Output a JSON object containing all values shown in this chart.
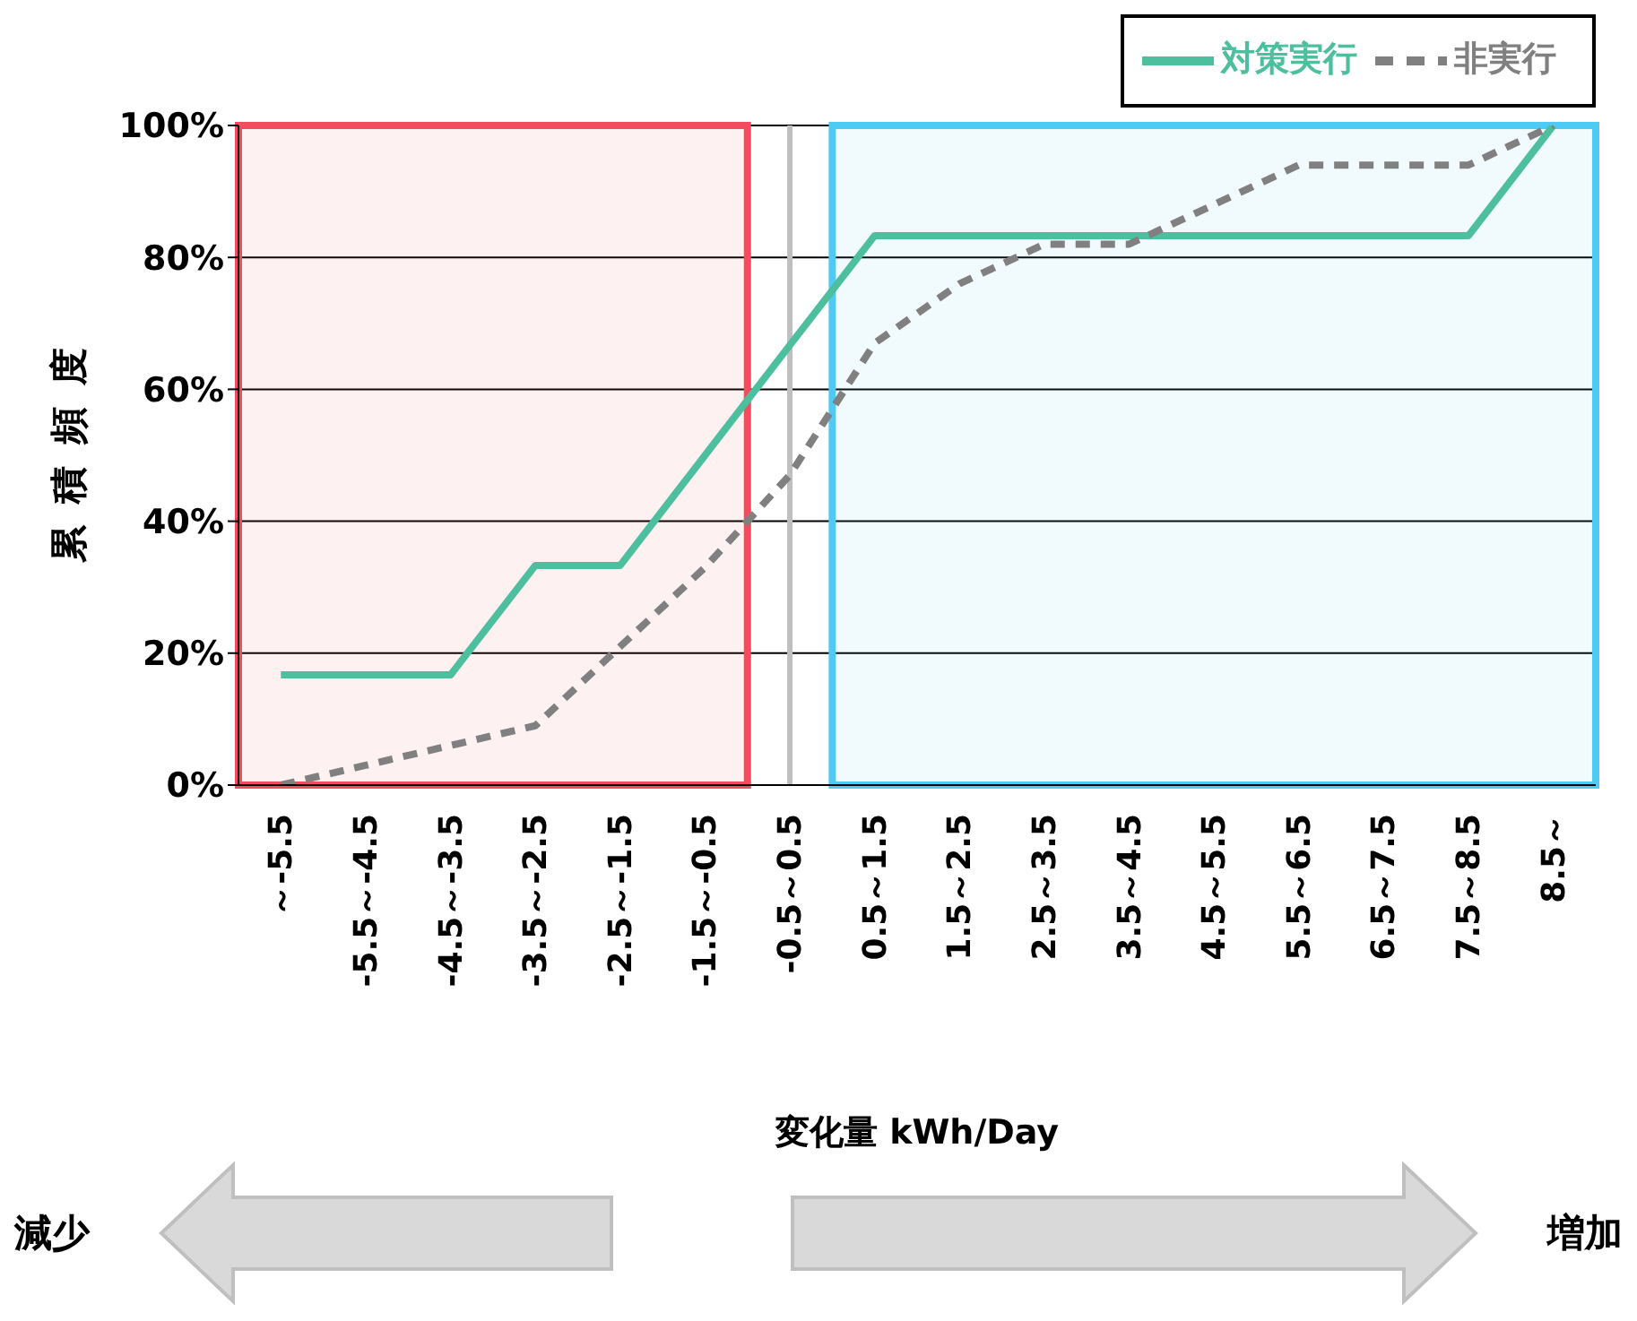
{
  "chart_data": {
    "type": "line",
    "xlabel": "変化量 kWh/Day",
    "ylabel": "累積頻度",
    "categories": [
      "～-5.5",
      "-5.5～-4.5",
      "-4.5～-3.5",
      "-3.5～-2.5",
      "-2.5～-1.5",
      "-1.5～-0.5",
      "-0.5～0.5",
      "0.5～1.5",
      "1.5～2.5",
      "2.5～3.5",
      "3.5～4.5",
      "4.5～5.5",
      "5.5～6.5",
      "6.5～7.5",
      "7.5～8.5",
      "8.5～"
    ],
    "series": [
      {
        "name": "対策実行",
        "color": "#4dbf9f",
        "line_style": "solid",
        "values": [
          16.7,
          16.7,
          16.7,
          33.3,
          33.3,
          50,
          66.7,
          83.3,
          83.3,
          83.3,
          83.3,
          83.3,
          83.3,
          83.3,
          83.3,
          100
        ]
      },
      {
        "name": "非実行",
        "color": "#808080",
        "line_style": "dashed",
        "values": [
          0,
          3,
          6,
          9,
          21,
          33,
          47,
          67,
          76,
          82,
          82,
          88,
          94,
          94,
          94,
          100
        ]
      }
    ],
    "ylim": [
      0,
      100
    ],
    "yticks": [
      {
        "value": 0,
        "label": "0%"
      },
      {
        "value": 20,
        "label": "20%"
      },
      {
        "value": 40,
        "label": "40%"
      },
      {
        "value": 60,
        "label": "60%"
      },
      {
        "value": 80,
        "label": "80%"
      },
      {
        "value": 100,
        "label": "100%"
      }
    ],
    "grid": "y",
    "legend": "top right",
    "marker": "none",
    "bands": [
      {
        "axis": "x",
        "from": "～-5.5",
        "to": "-1.5～-0.5",
        "color": "#f24d5e"
      },
      {
        "axis": "x",
        "from": "0.5～1.5",
        "to": "8.5～",
        "color": "#4dcbf5"
      }
    ],
    "ref_lines": [
      {
        "axis": "x",
        "value": "-0.5～0.5",
        "color": "#bfbfbf"
      }
    ],
    "annotations": [
      "減少",
      "増加"
    ]
  }
}
